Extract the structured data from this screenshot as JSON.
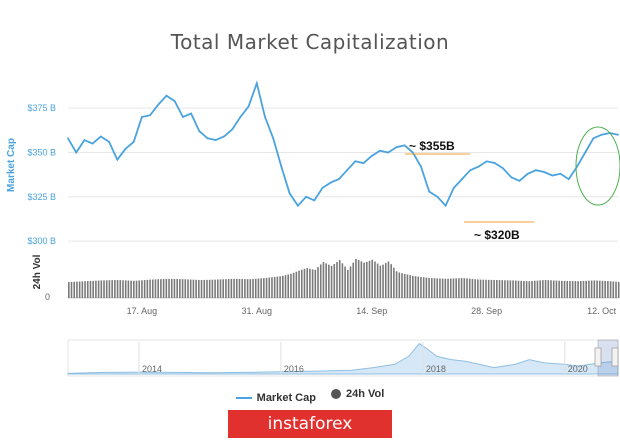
{
  "colors": {
    "market_cap": "#4aa3df",
    "volume": "#7a7a7a",
    "highlight_circle": "#4caf50",
    "annotation_line": "#f0a030",
    "brand_bg": "#e0312e"
  },
  "brand": {
    "text": "instaforex"
  },
  "legend": {
    "market_cap": "Market Cap",
    "volume": "24h Vol"
  },
  "annotations": {
    "high": "~ $355B",
    "low": "~ $320B"
  },
  "chart_data": {
    "type": "line",
    "title": "Total Market Capitalization",
    "ylabel": "Market Cap",
    "volume_label": "24h Vol",
    "y_ticks": [
      "$300 B",
      "$325 B",
      "$350 B",
      "$375 B"
    ],
    "y_tick_values": [
      300,
      325,
      350,
      375
    ],
    "ylim": [
      295,
      392
    ],
    "volume_ticks": [
      "0"
    ],
    "x_ticks": [
      "17. Aug",
      "31. Aug",
      "14. Sep",
      "28. Sep",
      "12. Oct"
    ],
    "x_tick_days": [
      17,
      31,
      45,
      59,
      73
    ],
    "xlim": [
      8,
      75
    ],
    "navigator_ticks": [
      "2014",
      "2016",
      "2018",
      "2020"
    ],
    "navigator_tick_years": [
      2014,
      2016,
      2018,
      2020
    ],
    "navigator_xlim": [
      2013.0,
      2020.75
    ],
    "series": [
      {
        "name": "Market Cap",
        "x": [
          8,
          9,
          10,
          11,
          12,
          13,
          14,
          15,
          16,
          17,
          18,
          19,
          20,
          21,
          22,
          23,
          24,
          25,
          26,
          27,
          28,
          29,
          30,
          31,
          32,
          33,
          34,
          35,
          36,
          37,
          38,
          39,
          40,
          41,
          42,
          43,
          44,
          45,
          46,
          47,
          48,
          49,
          50,
          51,
          52,
          53,
          54,
          55,
          56,
          57,
          58,
          59,
          60,
          61,
          62,
          63,
          64,
          65,
          66,
          67,
          68,
          69,
          70,
          71,
          72,
          73,
          74,
          75
        ],
        "values": [
          358,
          350,
          357,
          355,
          359,
          356,
          346,
          352,
          356,
          370,
          371,
          377,
          382,
          379,
          370,
          372,
          362,
          358,
          357,
          359,
          363,
          370,
          376,
          389,
          370,
          358,
          342,
          327,
          320,
          325,
          323,
          330,
          333,
          335,
          340,
          345,
          344,
          348,
          351,
          350,
          353,
          354,
          350,
          342,
          328,
          325,
          320,
          330,
          335,
          340,
          342,
          345,
          344,
          341,
          336,
          334,
          338,
          340,
          339,
          337,
          338,
          335,
          342,
          350,
          358,
          360,
          361,
          360
        ]
      },
      {
        "name": "24h Vol",
        "x": [
          8,
          10,
          12,
          14,
          16,
          18,
          20,
          22,
          24,
          26,
          28,
          30,
          32,
          34,
          35,
          36,
          37,
          38,
          39,
          40,
          41,
          42,
          43,
          44,
          45,
          46,
          47,
          48,
          50,
          52,
          54,
          56,
          58,
          60,
          62,
          64,
          66,
          68,
          70,
          72,
          74,
          75
        ],
        "values": [
          0.4,
          0.42,
          0.44,
          0.45,
          0.43,
          0.46,
          0.48,
          0.47,
          0.45,
          0.46,
          0.48,
          0.47,
          0.5,
          0.55,
          0.6,
          0.68,
          0.75,
          0.7,
          0.9,
          0.8,
          0.95,
          0.7,
          0.98,
          0.88,
          0.96,
          0.8,
          0.92,
          0.65,
          0.55,
          0.5,
          0.48,
          0.5,
          0.46,
          0.45,
          0.44,
          0.42,
          0.45,
          0.43,
          0.42,
          0.44,
          0.42,
          0.4
        ]
      }
    ],
    "navigator_series": {
      "name": "Market Cap",
      "years": [
        2013.0,
        2013.5,
        2014.0,
        2014.5,
        2015.0,
        2015.5,
        2016.0,
        2016.5,
        2017.0,
        2017.3,
        2017.6,
        2017.8,
        2017.95,
        2018.05,
        2018.2,
        2018.4,
        2018.6,
        2018.8,
        2019.0,
        2019.3,
        2019.5,
        2019.7,
        2020.0,
        2020.2,
        2020.5,
        2020.75
      ],
      "values": [
        0.02,
        0.05,
        0.06,
        0.05,
        0.04,
        0.05,
        0.07,
        0.09,
        0.12,
        0.2,
        0.3,
        0.55,
        0.95,
        0.8,
        0.55,
        0.45,
        0.4,
        0.3,
        0.2,
        0.3,
        0.45,
        0.35,
        0.3,
        0.25,
        0.35,
        0.4
      ]
    },
    "annotations": [
      {
        "text": "~ $355B",
        "y": 355
      },
      {
        "text": "~ $320B",
        "y": 320
      }
    ],
    "grid": true,
    "legend_position": "bottom"
  }
}
